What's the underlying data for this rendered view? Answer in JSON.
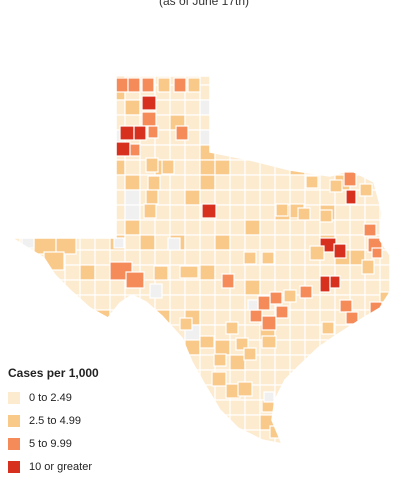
{
  "subtitle": "(as of June 17th)",
  "legend": {
    "title": "Cases per 1,000",
    "items": [
      {
        "label": "0 to 2.49",
        "color": "#fdebd0"
      },
      {
        "label": "2.5 to 4.99",
        "color": "#f9c98a"
      },
      {
        "label": "5 to 9.99",
        "color": "#f68b5a"
      },
      {
        "label": "10 or greater",
        "color": "#d7301f"
      }
    ]
  },
  "colors": {
    "no_data": "#f0f0f0",
    "county_border": "#ffffff",
    "background": "#ffffff"
  }
}
